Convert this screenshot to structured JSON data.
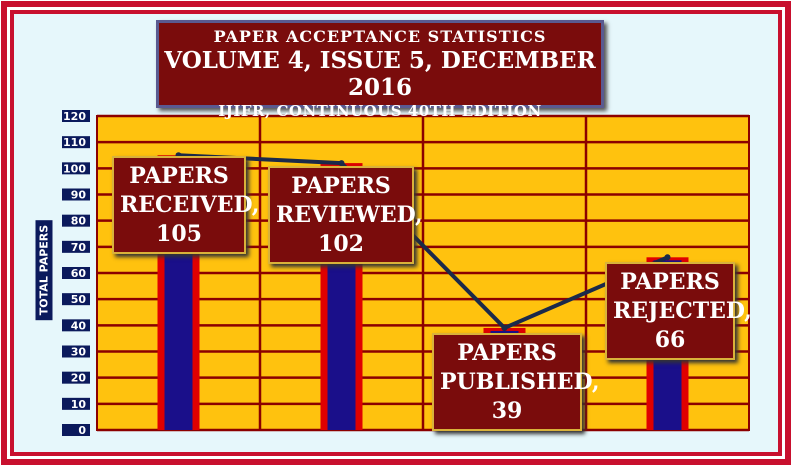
{
  "header": {
    "line1": "PAPER  ACCEPTANCE  STATISTICS",
    "line2": "VOLUME 4, ISSUE 5, DECEMBER 2016",
    "line3": "IJIFR, CONTINUOUS 40TH  EDITION"
  },
  "colors": {
    "plot_bg": "#ffc20e",
    "gridline": "#8b0000",
    "bar_fill": "#1a0f8a",
    "bar_edge": "#e00000",
    "label_bg": "#7a0c0c",
    "line": "#1b2a4a",
    "axis_label_bg": "#0b1a5c",
    "frame_red": "#c8102e",
    "frame_inner": "#e6f7fb"
  },
  "chart_data": {
    "type": "bar",
    "ylabel": "TOTAL PAPERS",
    "ylim": [
      0,
      120
    ],
    "ytick_step": 10,
    "yticks": [
      "0",
      "10",
      "20",
      "30",
      "40",
      "50",
      "60",
      "70",
      "80",
      "90",
      "100",
      "110",
      "120"
    ],
    "grid": true,
    "categories": [
      "PAPERS RECEIVED",
      "PAPERS REVIEWED",
      "PAPERS PUBLISHED",
      "PAPERS REJECTED"
    ],
    "values": [
      105,
      102,
      39,
      66
    ],
    "overlay": "line",
    "data_labels": [
      {
        "line1": "PAPERS",
        "line2": "RECEIVED,",
        "line3": "105"
      },
      {
        "line1": "PAPERS",
        "line2": "REVIEWED,",
        "line3": "102"
      },
      {
        "line1": "PAPERS",
        "line2": "PUBLISHED,",
        "line3": "39"
      },
      {
        "line1": "PAPERS",
        "line2": "REJECTED,",
        "line3": "66"
      }
    ]
  }
}
